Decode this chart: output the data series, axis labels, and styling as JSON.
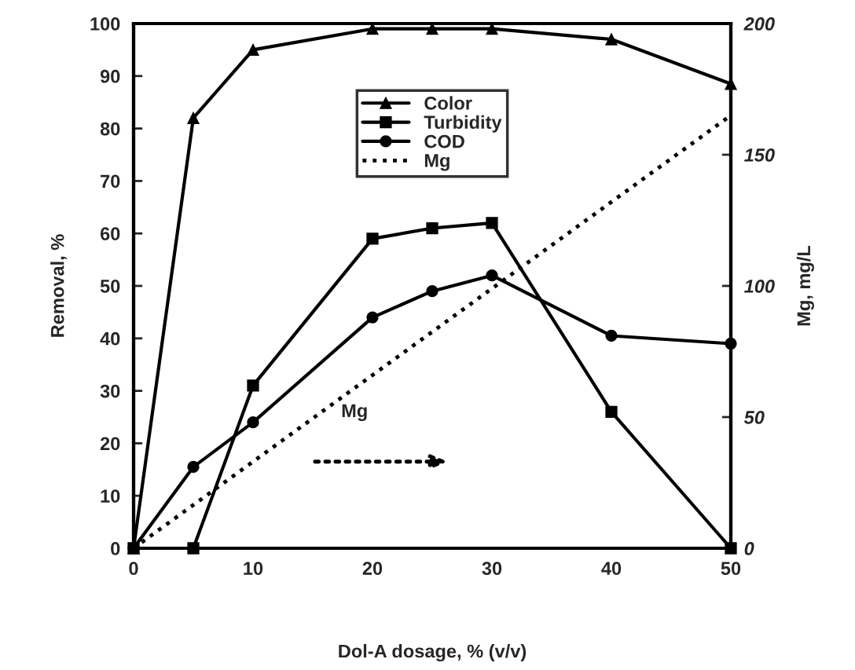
{
  "chart_data": {
    "type": "line",
    "xlabel": "Dol-A dosage, % (v/v)",
    "ylabel": "Removal, %",
    "y2label": "Mg, mg/L",
    "x": [
      0,
      5,
      10,
      20,
      25,
      30,
      40,
      50
    ],
    "series": [
      {
        "name": "Color",
        "color": "#000000",
        "marker": "triangle",
        "line_style": "solid",
        "values": [
          0,
          82,
          95,
          99,
          99,
          99,
          97,
          88.5
        ]
      },
      {
        "name": "Turbidity",
        "color": "#000000",
        "marker": "square",
        "line_style": "solid",
        "values": [
          0,
          0,
          31,
          59,
          61,
          62,
          26,
          0
        ]
      },
      {
        "name": "COD",
        "color": "#000000",
        "marker": "circle",
        "line_style": "solid",
        "values": [
          0,
          15.5,
          24,
          44,
          49,
          52,
          40.5,
          39
        ]
      },
      {
        "name": "Mg",
        "color": "#000000",
        "marker": "none",
        "line_style": "dotted",
        "axis": "y2",
        "x": [
          0,
          50
        ],
        "values": [
          0,
          165
        ]
      }
    ],
    "xlim": [
      0,
      50
    ],
    "xticks": [
      0,
      10,
      20,
      30,
      40,
      50
    ],
    "ylim": [
      0,
      100
    ],
    "yticks": [
      0,
      10,
      20,
      30,
      40,
      50,
      60,
      70,
      80,
      90,
      100
    ],
    "y2lim": [
      0,
      200
    ],
    "y2ticks": [
      0,
      50,
      100,
      150,
      200
    ],
    "annotations": [
      "Mg"
    ],
    "grid": false,
    "legend": "top"
  }
}
